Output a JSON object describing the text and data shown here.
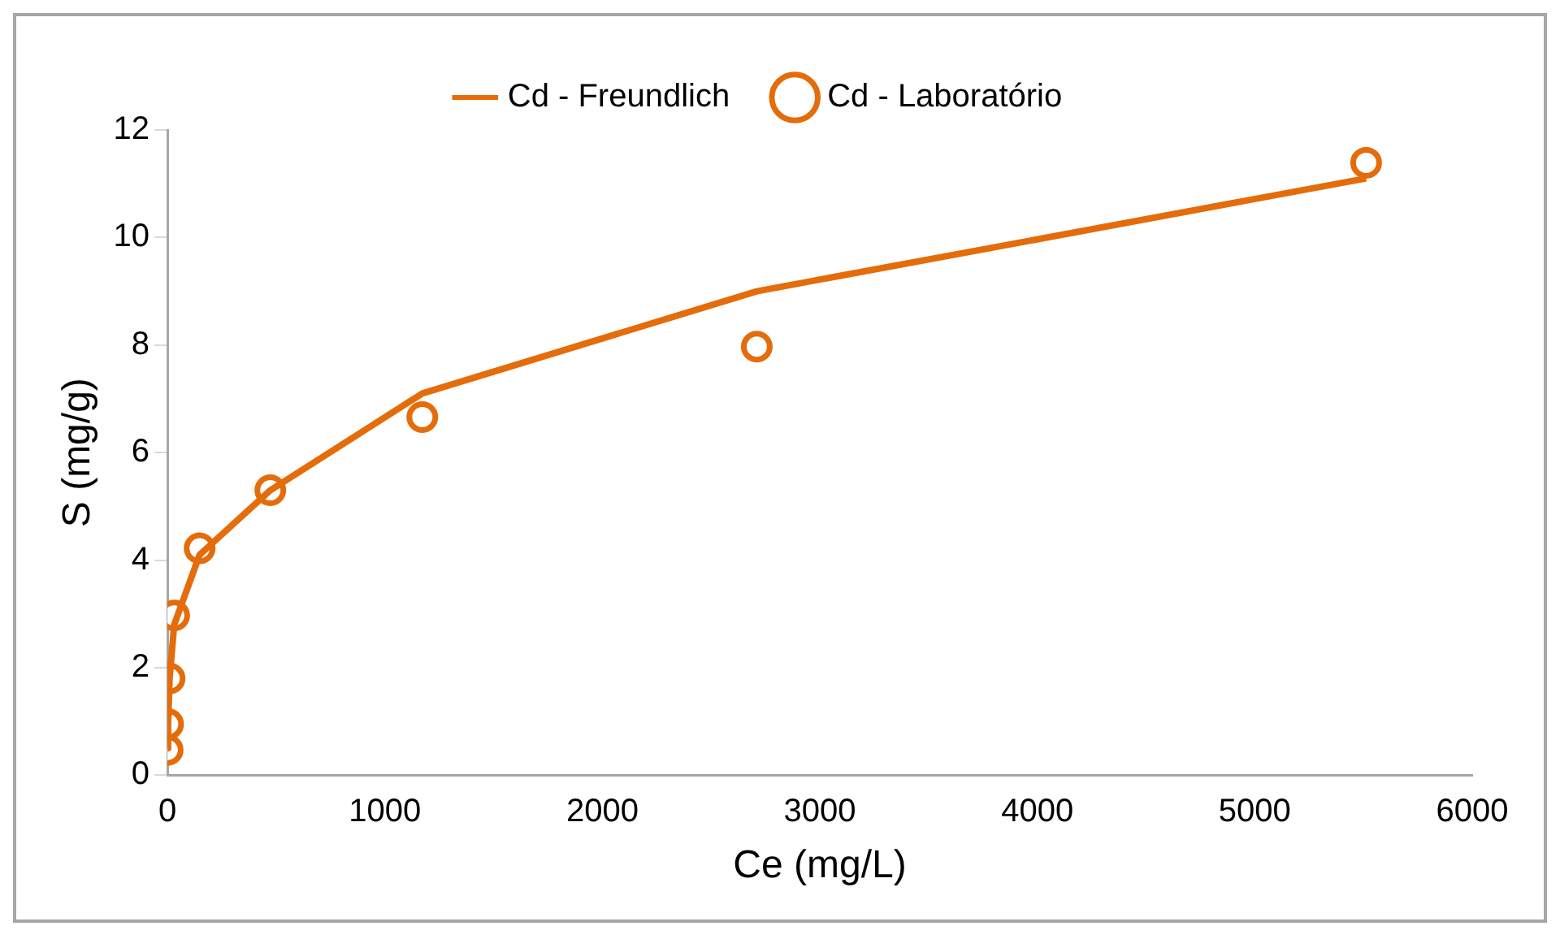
{
  "chart_data": {
    "type": "scatter",
    "xlabel": "Ce (mg/L)",
    "ylabel": "S (mg/g)",
    "xlim": [
      0,
      6000
    ],
    "xticks": [
      0,
      1000,
      2000,
      3000,
      4000,
      5000,
      6000
    ],
    "ylim": [
      0,
      12
    ],
    "yticks": [
      0,
      2,
      4,
      6,
      8,
      10,
      12
    ],
    "grid": false,
    "legend": "top",
    "series": [
      {
        "name": "Cd - Freundlich",
        "type": "line",
        "color": "#e46c0a",
        "marker": "none",
        "line_style": "solid",
        "x": [
          1,
          3,
          10,
          31,
          148,
          473,
          1172,
          2710,
          5512
        ],
        "values": [
          0.5,
          0.95,
          1.8,
          2.8,
          4.1,
          5.3,
          7.1,
          9.0,
          11.1
        ]
      },
      {
        "name": "Cd - Laboratório",
        "type": "scatter",
        "color": "#e46c0a",
        "marker": "circle",
        "x": [
          1,
          3,
          10,
          31,
          148,
          473,
          1172,
          2710,
          5512
        ],
        "values": [
          0.47,
          0.95,
          1.8,
          2.97,
          4.22,
          5.3,
          6.66,
          7.97,
          11.39
        ]
      }
    ]
  }
}
